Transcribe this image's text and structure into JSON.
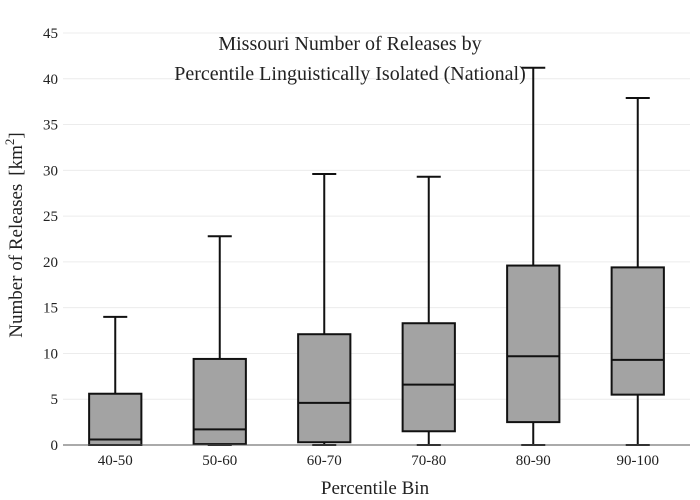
{
  "chart_data": {
    "type": "box",
    "title_lines": [
      "Missouri Number of Releases by",
      "Percentile Linguistically Isolated (National)"
    ],
    "xlabel": "Percentile Bin",
    "ylabel": "Number of Releases",
    "ylabel_unit": "[km",
    "ylabel_unit_sup": "2",
    "ylabel_unit_close": "]",
    "ylim": [
      0,
      45
    ],
    "yticks": [
      "0",
      "5",
      "10",
      "15",
      "20",
      "25",
      "30",
      "35",
      "40",
      "45"
    ],
    "grid": true,
    "legend": "none",
    "categories": [
      "40-50",
      "50-60",
      "60-70",
      "70-80",
      "80-90",
      "90-100"
    ],
    "boxes": [
      {
        "min": 0,
        "q1": 0,
        "median": 0.6,
        "q3": 5.6,
        "max": 14
      },
      {
        "min": 0,
        "q1": 0.1,
        "median": 1.7,
        "q3": 9.4,
        "max": 22.8
      },
      {
        "min": 0,
        "q1": 0.3,
        "median": 4.6,
        "q3": 12.1,
        "max": 29.6
      },
      {
        "min": 0,
        "q1": 1.5,
        "median": 6.6,
        "q3": 13.3,
        "max": 29.3
      },
      {
        "min": 0,
        "q1": 2.5,
        "median": 9.7,
        "q3": 19.6,
        "max": 41.2
      },
      {
        "min": 0,
        "q1": 5.5,
        "median": 9.3,
        "q3": 19.4,
        "max": 37.9
      }
    ],
    "colors": {
      "box_fill": "#a3a3a3",
      "box_stroke": "#111111",
      "grid": "#ececec",
      "axis": "#555555"
    }
  }
}
